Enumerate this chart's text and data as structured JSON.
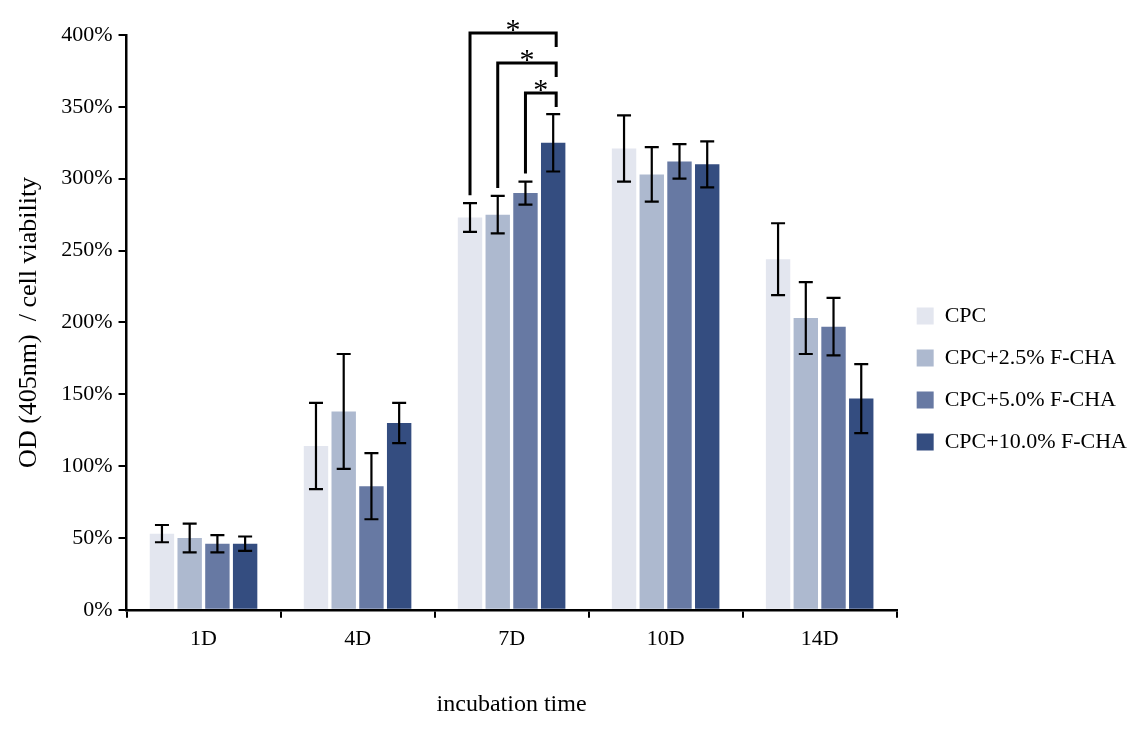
{
  "chart_data": {
    "type": "bar",
    "xlabel": "incubation time",
    "ylabel": "OD (405nm)  / cell viability",
    "categories": [
      "1D",
      "4D",
      "7D",
      "10D",
      "14D"
    ],
    "series": [
      {
        "name": "CPC",
        "color": "#e3e6ef",
        "values": [
          53,
          114,
          273,
          321,
          244
        ],
        "errors": [
          6,
          30,
          10,
          23,
          25
        ]
      },
      {
        "name": "CPC+2.5% F-CHA",
        "color": "#adb9cf",
        "values": [
          50,
          138,
          275,
          303,
          203
        ],
        "errors": [
          10,
          40,
          13,
          19,
          25
        ]
      },
      {
        "name": "CPC+5.0% F-CHA",
        "color": "#6779a3",
        "values": [
          46,
          86,
          290,
          312,
          197
        ],
        "errors": [
          6,
          23,
          8,
          12,
          20
        ]
      },
      {
        "name": "CPC+10.0% F-CHA",
        "color": "#344d80",
        "values": [
          46,
          130,
          325,
          310,
          147
        ],
        "errors": [
          5,
          14,
          20,
          16,
          24
        ]
      }
    ],
    "ylim": [
      0,
      400
    ],
    "yticks": [
      {
        "value": 0,
        "label": "0%"
      },
      {
        "value": 50,
        "label": "50%"
      },
      {
        "value": 100,
        "label": "100%"
      },
      {
        "value": 150,
        "label": "150%"
      },
      {
        "value": 200,
        "label": "200%"
      },
      {
        "value": 250,
        "label": "250%"
      },
      {
        "value": 300,
        "label": "300%"
      },
      {
        "value": 350,
        "label": "350%"
      },
      {
        "value": 400,
        "label": "400%"
      }
    ],
    "annotations": [
      "*",
      "*",
      "*"
    ],
    "grid": false,
    "legend": "right"
  }
}
